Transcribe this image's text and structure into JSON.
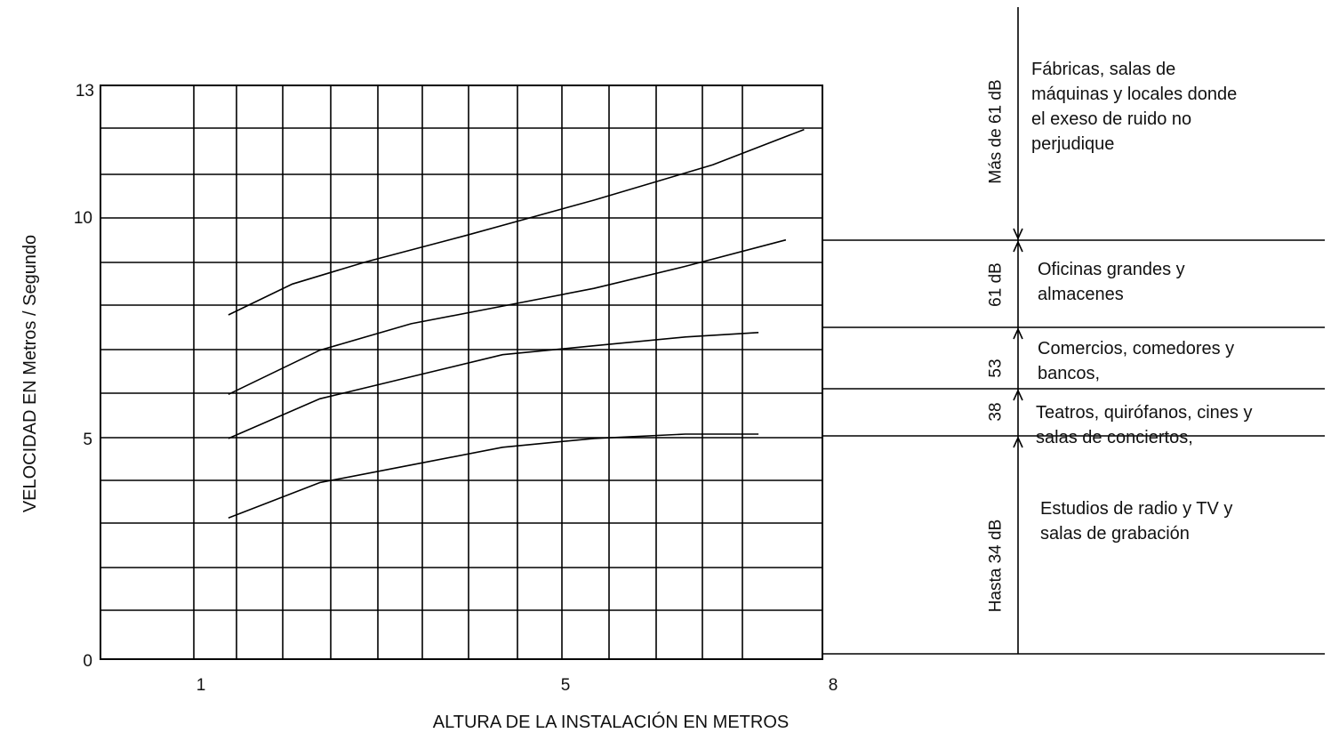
{
  "chart_data": {
    "type": "line",
    "xlabel": "ALTURA DE LA INSTALACIÓN EN METROS",
    "ylabel": "VELOCIDAD EN Metros / Segundo",
    "xlim": [
      0.1,
      8
    ],
    "ylim": [
      0,
      13
    ],
    "x_ticks": [
      1,
      5,
      8
    ],
    "y_ticks": [
      0,
      5,
      10,
      13
    ],
    "grid": true,
    "series": [
      {
        "x": [
          1.5,
          2.2,
          3.0,
          4.1,
          5.5,
          6.8,
          7.8
        ],
        "y": [
          7.8,
          8.5,
          9.0,
          9.6,
          10.4,
          11.2,
          12.0
        ]
      },
      {
        "x": [
          1.5,
          2.5,
          3.5,
          4.5,
          5.5,
          6.5,
          7.6
        ],
        "y": [
          6.0,
          7.0,
          7.6,
          8.0,
          8.4,
          8.9,
          9.5
        ]
      },
      {
        "x": [
          1.5,
          2.5,
          3.5,
          4.5,
          5.5,
          6.5,
          7.3
        ],
        "y": [
          5.0,
          5.9,
          6.4,
          6.9,
          7.1,
          7.3,
          7.4
        ]
      },
      {
        "x": [
          1.5,
          2.5,
          3.5,
          4.5,
          5.5,
          6.5,
          7.3
        ],
        "y": [
          3.2,
          4.0,
          4.4,
          4.8,
          5.0,
          5.1,
          5.1
        ]
      }
    ],
    "bands": [
      {
        "db": "Más de 61 dB",
        "description": [
          "Fábricas, salas de",
          "máquinas y locales donde",
          "el exeso de ruido no",
          "perjudique"
        ]
      },
      {
        "db": "61 dB",
        "description": [
          "Oficinas grandes y",
          "almacenes"
        ]
      },
      {
        "db": "53",
        "description": [
          "Comercios, comedores y",
          "bancos,"
        ]
      },
      {
        "db": "38",
        "description": [
          "Teatros, quirófanos, cines y",
          "salas de conciertos,"
        ]
      },
      {
        "db": "Hasta 34 dB",
        "description": [
          "Estudios de radio y TV y",
          "salas de grabación"
        ]
      }
    ]
  }
}
